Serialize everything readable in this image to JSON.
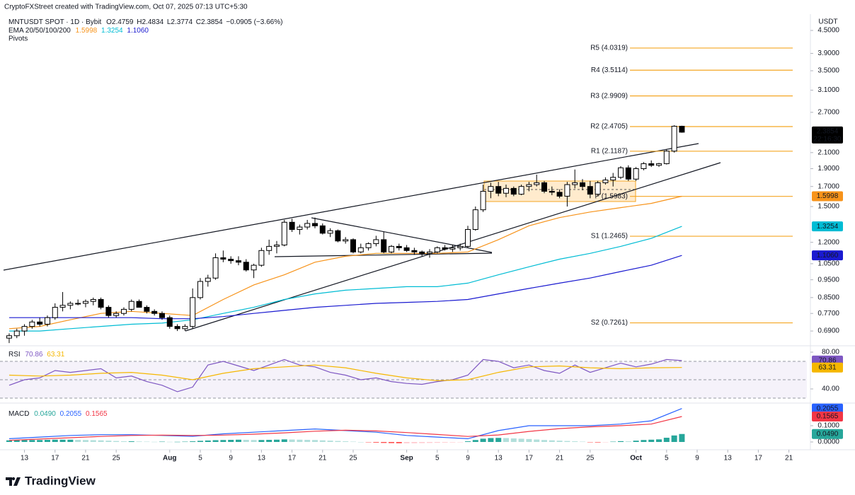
{
  "header": {
    "credit": "CryptoFXStreet created with TradingView.com, Oct 07, 2025 07:13 UTC+5:30",
    "symbol": "MNTUSDT SPOT · 1D · Bybit",
    "ohlc": [
      "O2.4759",
      "H2.4834",
      "L2.3774",
      "C2.3854",
      "−0.0905 (−3.66%)"
    ],
    "currency": "USDT",
    "logo": "TradingView"
  },
  "chart_data": [
    {
      "type": "candlestick",
      "indicator": "EMA 20/50/100/200",
      "pivots_title": "Pivots",
      "log_scale": true,
      "ylim": [
        0.632,
        4.938
      ],
      "xlim": [
        -1.2,
        104.35
      ],
      "yticks": [
        {
          "value": 4.5,
          "label": "4.5000"
        },
        {
          "value": 3.9,
          "label": "3.9000"
        },
        {
          "value": 3.5,
          "label": "3.5000"
        },
        {
          "value": 3.1,
          "label": "3.1000"
        },
        {
          "value": 2.7,
          "label": "2.7000"
        },
        {
          "value": 2.1,
          "label": "2.1000"
        },
        {
          "value": 1.9,
          "label": "1.9000"
        },
        {
          "value": 1.7,
          "label": "1.7000"
        },
        {
          "value": 1.5,
          "label": "1.5000"
        },
        {
          "value": 1.2,
          "label": "1.2000"
        },
        {
          "value": 1.05,
          "label": "1.0500"
        },
        {
          "value": 0.95,
          "label": "0.9500"
        },
        {
          "value": 0.85,
          "label": "0.8500"
        },
        {
          "value": 0.77,
          "label": "0.7700"
        },
        {
          "value": 0.69,
          "label": "0.6900"
        }
      ],
      "xticks": [
        {
          "value": 2,
          "label": "13"
        },
        {
          "value": 6,
          "label": "17"
        },
        {
          "value": 10,
          "label": "21"
        },
        {
          "value": 14,
          "label": "25"
        },
        {
          "value": 21,
          "label": "Aug"
        },
        {
          "value": 25,
          "label": "5"
        },
        {
          "value": 29,
          "label": "9"
        },
        {
          "value": 33,
          "label": "13"
        },
        {
          "value": 37,
          "label": "17"
        },
        {
          "value": 41,
          "label": "21"
        },
        {
          "value": 45,
          "label": "25"
        },
        {
          "value": 52,
          "label": "Sep"
        },
        {
          "value": 56,
          "label": "5"
        },
        {
          "value": 60,
          "label": "9"
        },
        {
          "value": 64,
          "label": "13"
        },
        {
          "value": 68,
          "label": "17"
        },
        {
          "value": 72,
          "label": "21"
        },
        {
          "value": 76,
          "label": "25"
        },
        {
          "value": 82,
          "label": "Oct"
        },
        {
          "value": 86,
          "label": "5"
        },
        {
          "value": 90,
          "label": "9"
        },
        {
          "value": 94,
          "label": "13"
        },
        {
          "value": 98,
          "label": "17"
        },
        {
          "value": 102,
          "label": "21"
        }
      ],
      "up_color": "#ffffff",
      "down_color": "#000000",
      "open": [
        0.66,
        0.67,
        0.69,
        0.71,
        0.73,
        0.72,
        0.75,
        0.8,
        0.81,
        0.82,
        0.82,
        0.83,
        0.84,
        0.8,
        0.76,
        0.77,
        0.79,
        0.83,
        0.8,
        0.78,
        0.77,
        0.75,
        0.71,
        0.7,
        0.71,
        0.85,
        0.94,
        0.96,
        1.09,
        1.08,
        1.07,
        1.06,
        1.01,
        1.04,
        1.14,
        1.17,
        1.18,
        1.36,
        1.3,
        1.32,
        1.35,
        1.33,
        1.27,
        1.29,
        1.21,
        1.22,
        1.13,
        1.16,
        1.19,
        1.22,
        1.13,
        1.17,
        1.16,
        1.14,
        1.13,
        1.12,
        1.13,
        1.16,
        1.15,
        1.16,
        1.17,
        1.3,
        1.47,
        1.65,
        1.7,
        1.63,
        1.68,
        1.62,
        1.7,
        1.72,
        1.74,
        1.65,
        1.64,
        1.6,
        1.72,
        1.74,
        1.7,
        1.62,
        1.74,
        1.77,
        1.8,
        1.91,
        1.78,
        1.9,
        1.96,
        1.94,
        1.96,
        2.12,
        2.4759
      ],
      "high": [
        0.68,
        0.7,
        0.72,
        0.74,
        0.75,
        0.76,
        0.82,
        0.88,
        0.83,
        0.84,
        0.84,
        0.85,
        0.85,
        0.81,
        0.78,
        0.8,
        0.84,
        0.84,
        0.81,
        0.79,
        0.78,
        0.76,
        0.72,
        0.72,
        0.9,
        0.96,
        0.98,
        1.12,
        1.14,
        1.1,
        1.1,
        1.08,
        1.05,
        1.16,
        1.22,
        1.21,
        1.38,
        1.39,
        1.34,
        1.38,
        1.4,
        1.35,
        1.31,
        1.3,
        1.24,
        1.23,
        1.19,
        1.2,
        1.25,
        1.28,
        1.18,
        1.19,
        1.18,
        1.16,
        1.14,
        1.15,
        1.17,
        1.18,
        1.18,
        1.19,
        1.33,
        1.5,
        1.72,
        1.74,
        1.75,
        1.72,
        1.7,
        1.72,
        1.75,
        1.83,
        1.76,
        1.7,
        1.67,
        1.75,
        1.89,
        1.78,
        1.76,
        1.76,
        1.8,
        1.85,
        1.93,
        1.94,
        1.92,
        1.98,
        2.0,
        1.97,
        2.14,
        2.49,
        2.4834
      ],
      "low": [
        0.64,
        0.66,
        0.67,
        0.7,
        0.71,
        0.71,
        0.74,
        0.78,
        0.79,
        0.81,
        0.8,
        0.81,
        0.79,
        0.75,
        0.75,
        0.76,
        0.78,
        0.8,
        0.77,
        0.76,
        0.74,
        0.7,
        0.69,
        0.69,
        0.7,
        0.84,
        0.91,
        0.95,
        1.06,
        1.05,
        1.04,
        1.0,
        0.96,
        1.03,
        1.11,
        1.12,
        1.17,
        1.28,
        1.26,
        1.3,
        1.31,
        1.26,
        1.24,
        1.2,
        1.19,
        1.12,
        1.12,
        1.14,
        1.17,
        1.12,
        1.12,
        1.14,
        1.13,
        1.11,
        1.1,
        1.09,
        1.12,
        1.14,
        1.13,
        1.14,
        1.16,
        1.29,
        1.45,
        1.58,
        1.6,
        1.59,
        1.6,
        1.61,
        1.65,
        1.7,
        1.63,
        1.61,
        1.58,
        1.5,
        1.68,
        1.66,
        1.58,
        1.6,
        1.72,
        1.7,
        1.78,
        1.76,
        1.76,
        1.88,
        1.92,
        1.92,
        1.95,
        2.1,
        2.3774
      ],
      "close": [
        0.67,
        0.69,
        0.71,
        0.73,
        0.72,
        0.75,
        0.8,
        0.81,
        0.82,
        0.82,
        0.83,
        0.84,
        0.8,
        0.76,
        0.77,
        0.79,
        0.83,
        0.8,
        0.78,
        0.77,
        0.75,
        0.71,
        0.7,
        0.71,
        0.85,
        0.94,
        0.96,
        1.09,
        1.08,
        1.07,
        1.06,
        1.01,
        1.04,
        1.14,
        1.17,
        1.18,
        1.36,
        1.3,
        1.32,
        1.35,
        1.33,
        1.27,
        1.29,
        1.21,
        1.22,
        1.13,
        1.16,
        1.19,
        1.22,
        1.13,
        1.17,
        1.16,
        1.14,
        1.13,
        1.12,
        1.13,
        1.16,
        1.15,
        1.16,
        1.17,
        1.3,
        1.47,
        1.65,
        1.7,
        1.63,
        1.68,
        1.62,
        1.7,
        1.72,
        1.74,
        1.65,
        1.64,
        1.6,
        1.72,
        1.74,
        1.7,
        1.62,
        1.74,
        1.77,
        1.8,
        1.91,
        1.78,
        1.9,
        1.96,
        1.94,
        1.96,
        2.12,
        2.4759,
        2.3854
      ],
      "last_price_label": "2.3854",
      "countdown": "22:16:30",
      "series": [
        {
          "color": "#f7931a",
          "value_label": "1.5998",
          "x": [
            0,
            4,
            8,
            12,
            16,
            20,
            24,
            28,
            32,
            36,
            40,
            44,
            48,
            52,
            56,
            60,
            64,
            68,
            72,
            76,
            80,
            84,
            88
          ],
          "values": [
            0.7,
            0.71,
            0.74,
            0.77,
            0.78,
            0.77,
            0.76,
            0.84,
            0.92,
            0.98,
            1.06,
            1.1,
            1.12,
            1.12,
            1.12,
            1.13,
            1.22,
            1.33,
            1.4,
            1.45,
            1.49,
            1.53,
            1.5998
          ]
        },
        {
          "color": "#00bcd4",
          "value_label": "1.3254",
          "x": [
            0,
            4,
            8,
            12,
            16,
            20,
            24,
            28,
            32,
            36,
            40,
            44,
            48,
            52,
            56,
            60,
            64,
            68,
            72,
            76,
            80,
            84,
            88
          ],
          "values": [
            0.69,
            0.69,
            0.7,
            0.71,
            0.72,
            0.725,
            0.74,
            0.77,
            0.8,
            0.84,
            0.87,
            0.89,
            0.9,
            0.91,
            0.91,
            0.93,
            0.98,
            1.03,
            1.08,
            1.12,
            1.17,
            1.23,
            1.3254
          ]
        },
        {
          "color": "#1a1ad0",
          "value_label": "1.1060",
          "x": [
            0,
            4,
            8,
            12,
            16,
            20,
            24,
            28,
            32,
            36,
            40,
            44,
            48,
            52,
            56,
            60,
            64,
            68,
            72,
            76,
            80,
            84,
            88
          ],
          "values": [
            0.75,
            0.75,
            0.75,
            0.75,
            0.75,
            0.745,
            0.745,
            0.755,
            0.77,
            0.785,
            0.8,
            0.81,
            0.82,
            0.825,
            0.83,
            0.84,
            0.87,
            0.9,
            0.93,
            0.96,
            1.0,
            1.04,
            1.106
          ]
        }
      ],
      "pivot_color": "#f5a623",
      "pivots": [
        {
          "label": "R5 (4.0319)",
          "value": 4.0319
        },
        {
          "label": "R4 (3.5114)",
          "value": 3.5114
        },
        {
          "label": "R3 (2.9909)",
          "value": 2.9909
        },
        {
          "label": "R2 (2.4705)",
          "value": 2.4705
        },
        {
          "label": "R1 (2.1187)",
          "value": 2.1187
        },
        {
          "label": "P (1.5983)",
          "value": 1.5983
        },
        {
          "label": "S1 (1.2465)",
          "value": 1.2465
        },
        {
          "label": "S2 (0.7261)",
          "value": 0.7261
        }
      ]
    },
    {
      "type": "line",
      "title": "RSI",
      "ylim": [
        26.15,
        86.15
      ],
      "yticks": [
        {
          "value": 80,
          "label": "80.00"
        },
        {
          "value": 40,
          "label": "40.00"
        }
      ],
      "levels": [
        70,
        50,
        30
      ],
      "series": [
        {
          "color": "#7e57c2",
          "value_label": "70.86",
          "x": [
            0,
            2,
            4,
            6,
            8,
            10,
            12,
            14,
            16,
            18,
            20,
            22,
            24,
            26,
            28,
            30,
            32,
            34,
            36,
            38,
            40,
            42,
            44,
            46,
            48,
            50,
            52,
            54,
            56,
            58,
            60,
            62,
            64,
            66,
            68,
            70,
            72,
            74,
            76,
            78,
            80,
            82,
            84,
            86,
            88
          ],
          "values": [
            44,
            50,
            52,
            60,
            58,
            60,
            62,
            52,
            54,
            48,
            44,
            37,
            42,
            66,
            70,
            65,
            60,
            66,
            72,
            66,
            64,
            58,
            55,
            50,
            52,
            48,
            46,
            45,
            48,
            50,
            55,
            72,
            70,
            63,
            66,
            60,
            57,
            66,
            58,
            63,
            68,
            64,
            67,
            72,
            70.86
          ]
        },
        {
          "color": "#f5b700",
          "value_label": "63.31",
          "x": [
            0,
            4,
            8,
            12,
            16,
            20,
            24,
            28,
            32,
            36,
            40,
            44,
            48,
            52,
            56,
            60,
            64,
            68,
            72,
            76,
            80,
            84,
            88
          ],
          "values": [
            55,
            54,
            55,
            57,
            58,
            55,
            50,
            57,
            62,
            64,
            66,
            63,
            57,
            52,
            49,
            50,
            58,
            64,
            65,
            63,
            62,
            63,
            63.31
          ]
        }
      ]
    },
    {
      "type": "macd",
      "title": "MACD",
      "ylim": [
        -0.0304,
        0.2304
      ],
      "yticks": [
        {
          "value": 0.1,
          "label": "0.1000"
        },
        {
          "value": 0,
          "label": "0.0000"
        }
      ],
      "histogram": {
        "value_label": "0.0490",
        "colors": {
          "pos_up": "#26a69a",
          "pos_down": "#b2dfdb",
          "neg_down": "#ff5252",
          "neg_up": "#ffcdd2"
        },
        "values": [
          0.01,
          0.011,
          0.012,
          0.012,
          0.012,
          0.013,
          0.014,
          0.014,
          0.014,
          0.013,
          0.012,
          0.011,
          0.01,
          0.008,
          0.006,
          0.004,
          0.004,
          0.003,
          0.002,
          0.001,
          0.002,
          0.001,
          0.001,
          0.002,
          0.004,
          0.007,
          0.009,
          0.011,
          0.012,
          0.013,
          0.014,
          0.013,
          0.012,
          0.012,
          0.013,
          0.014,
          0.016,
          0.015,
          0.014,
          0.013,
          0.012,
          0.01,
          0.008,
          0.006,
          0.004,
          0.002,
          0.0,
          -0.002,
          -0.004,
          -0.006,
          -0.007,
          -0.008,
          -0.008,
          -0.008,
          -0.007,
          -0.006,
          -0.005,
          -0.004,
          -0.003,
          -0.002,
          0.004,
          0.012,
          0.02,
          0.024,
          0.025,
          0.024,
          0.022,
          0.02,
          0.018,
          0.015,
          0.012,
          0.01,
          0.008,
          0.006,
          0.004,
          0.002,
          -0.002,
          -0.003,
          -0.002,
          0.002,
          0.005,
          0.004,
          0.008,
          0.012,
          0.014,
          0.016,
          0.026,
          0.04,
          0.049
        ]
      },
      "series": [
        {
          "color": "#2962ff",
          "value_label": "0.2055",
          "x": [
            0,
            4,
            8,
            12,
            16,
            20,
            24,
            28,
            32,
            36,
            40,
            44,
            48,
            52,
            56,
            60,
            64,
            68,
            72,
            76,
            80,
            84,
            88
          ],
          "values": [
            0.02,
            0.03,
            0.04,
            0.045,
            0.045,
            0.04,
            0.035,
            0.05,
            0.06,
            0.07,
            0.08,
            0.07,
            0.06,
            0.04,
            0.03,
            0.02,
            0.07,
            0.1,
            0.1,
            0.1,
            0.11,
            0.13,
            0.2055
          ]
        },
        {
          "color": "#f23645",
          "value_label": "0.1565",
          "x": [
            0,
            4,
            8,
            12,
            16,
            20,
            24,
            28,
            32,
            36,
            40,
            44,
            48,
            52,
            56,
            60,
            64,
            68,
            72,
            76,
            80,
            84,
            88
          ],
          "values": [
            0.01,
            0.018,
            0.026,
            0.034,
            0.04,
            0.042,
            0.04,
            0.042,
            0.048,
            0.056,
            0.066,
            0.072,
            0.068,
            0.058,
            0.046,
            0.034,
            0.043,
            0.065,
            0.082,
            0.093,
            0.1,
            0.11,
            0.1565
          ]
        }
      ]
    }
  ]
}
